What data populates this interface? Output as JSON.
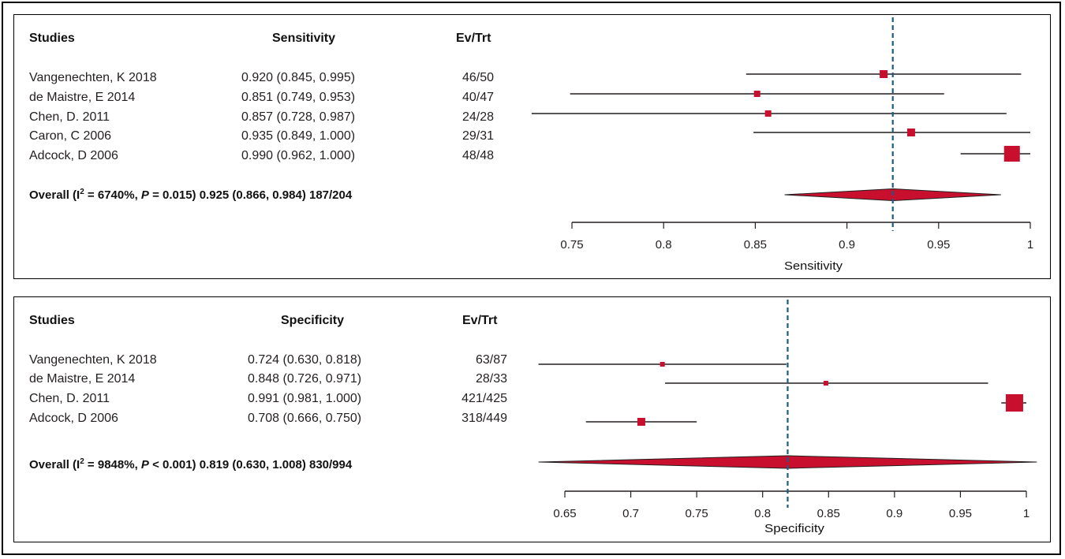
{
  "chart_data": [
    {
      "type": "forest",
      "header": {
        "studies": "Studies",
        "metric": "Sensitivity",
        "events": "Ev/Trt"
      },
      "studies": [
        {
          "name": "Vangenechten, K 2018",
          "estimate_text": "0.920 (0.845, 0.995)",
          "events": "46/50",
          "est": 0.92,
          "lo": 0.845,
          "hi": 0.995
        },
        {
          "name": "de Maistre, E 2014",
          "estimate_text": "0.851 (0.749, 0.953)",
          "events": "40/47",
          "est": 0.851,
          "lo": 0.749,
          "hi": 0.953
        },
        {
          "name": "Chen, D. 2011",
          "estimate_text": "0.857 (0.728, 0.987)",
          "events": "24/28",
          "est": 0.857,
          "lo": 0.728,
          "hi": 0.987
        },
        {
          "name": "Caron, C 2006",
          "estimate_text": "0.935 (0.849, 1.000)",
          "events": "29/31",
          "est": 0.935,
          "lo": 0.849,
          "hi": 1.0
        },
        {
          "name": "Adcock, D 2006",
          "estimate_text": "0.990 (0.962, 1.000)",
          "events": "48/48",
          "est": 0.99,
          "lo": 0.962,
          "hi": 1.0
        }
      ],
      "overall": {
        "prefix": "Overall (I",
        "sup": "2",
        "stat": " = 6740%, ",
        "p_letter": "P",
        "p_value": " = 0.015) 0.925 (0.866, 0.984) 187/204",
        "est": 0.925,
        "lo": 0.866,
        "hi": 0.984
      },
      "xlim": [
        0.75,
        1.0
      ],
      "ticks": [
        "0.75",
        "0.8",
        "0.85",
        "0.9",
        "0.95",
        "1"
      ],
      "tick_values": [
        0.75,
        0.8,
        0.85,
        0.9,
        0.95,
        1.0
      ],
      "xlabel": "Sensitivity",
      "reference_line": 0.925
    },
    {
      "type": "forest",
      "header": {
        "studies": "Studies",
        "metric": "Specificity",
        "events": "Ev/Trt"
      },
      "studies": [
        {
          "name": "Vangenechten, K 2018",
          "estimate_text": "0.724 (0.630, 0.818)",
          "events": "63/87",
          "est": 0.724,
          "lo": 0.63,
          "hi": 0.818
        },
        {
          "name": "de Maistre, E 2014",
          "estimate_text": "0.848 (0.726, 0.971)",
          "events": "28/33",
          "est": 0.848,
          "lo": 0.726,
          "hi": 0.971
        },
        {
          "name": "Chen, D. 2011",
          "estimate_text": "0.991 (0.981, 1.000)",
          "events": "421/425",
          "est": 0.991,
          "lo": 0.981,
          "hi": 1.0
        },
        {
          "name": "Adcock, D 2006",
          "estimate_text": "0.708 (0.666, 0.750)",
          "events": "318/449",
          "est": 0.708,
          "lo": 0.666,
          "hi": 0.75
        }
      ],
      "overall": {
        "prefix": "Overall (I",
        "sup": "2",
        "stat": " = 9848%, ",
        "p_letter": "P",
        "p_value": " < 0.001) 0.819 (0.630, 1.008) 830/994",
        "est": 0.819,
        "lo": 0.63,
        "hi": 1.008
      },
      "xlim": [
        0.65,
        1.0
      ],
      "ticks": [
        "0.65",
        "0.7",
        "0.75",
        "0.8",
        "0.85",
        "0.9",
        "0.95",
        "1"
      ],
      "tick_values": [
        0.65,
        0.7,
        0.75,
        0.8,
        0.85,
        0.9,
        0.95,
        1.0
      ],
      "xlabel": "Specificity",
      "reference_line": 0.819
    }
  ],
  "colors": {
    "marker": "#c8102e",
    "line": "#231f20",
    "reference": "#1f5a82"
  }
}
